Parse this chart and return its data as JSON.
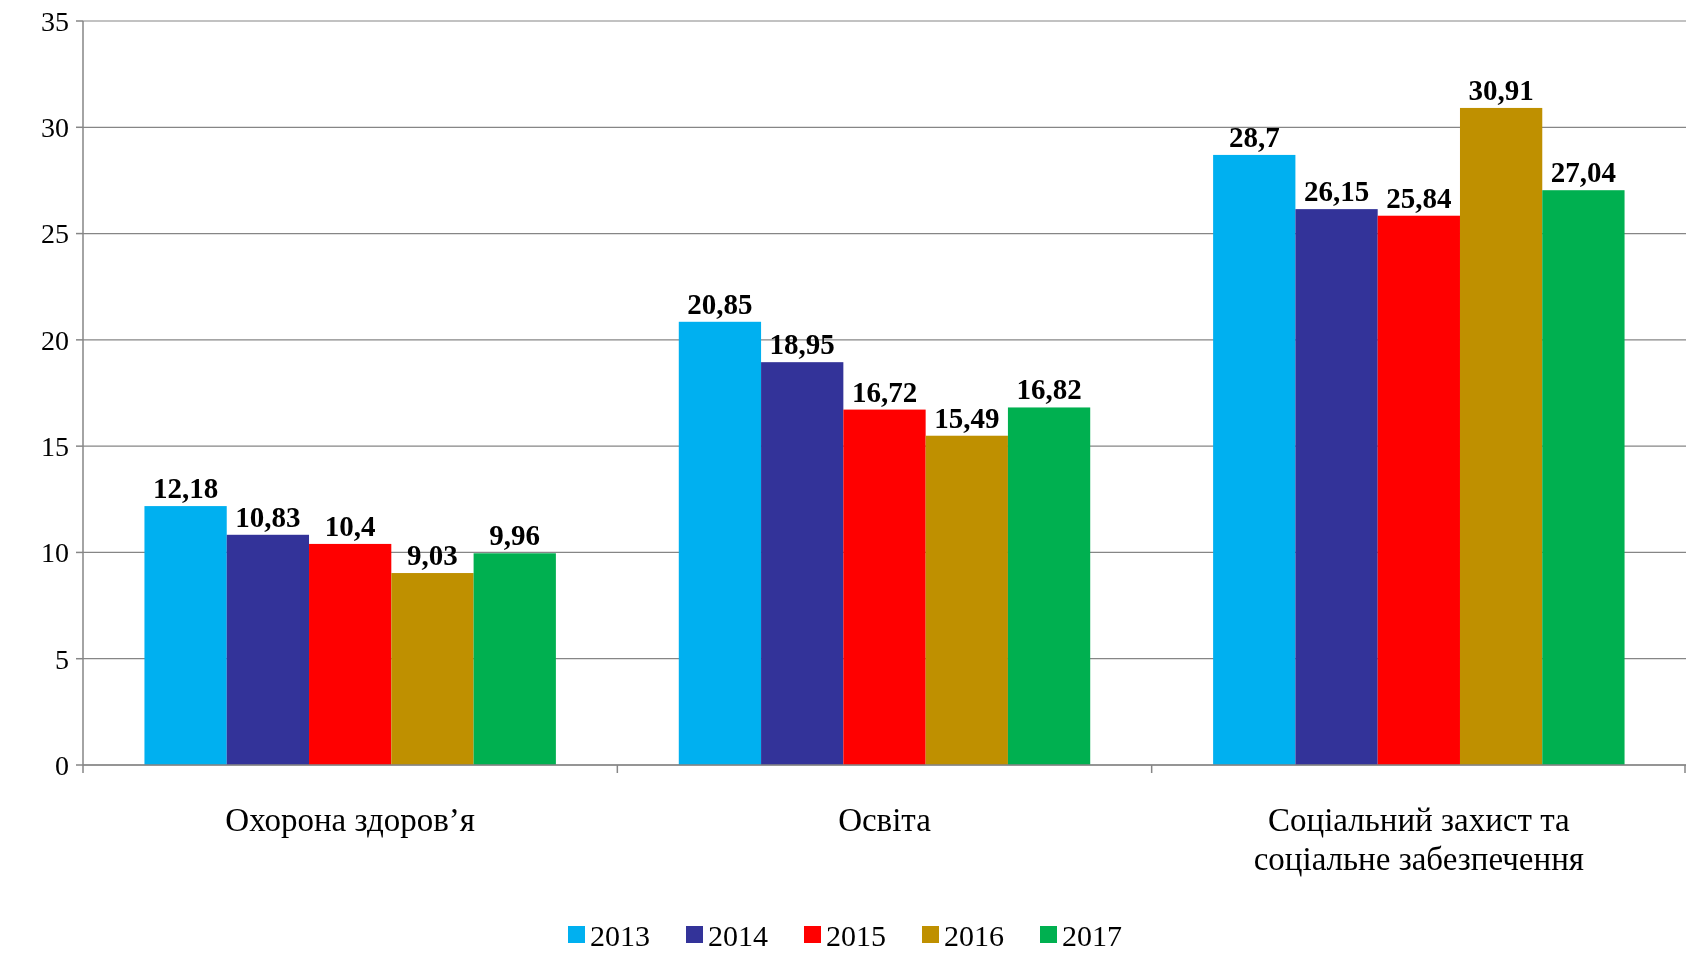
{
  "chart_data": {
    "type": "bar",
    "categories": [
      "Охорона здоров’я",
      "Освіта",
      "Соціальний захист та соціальне забезпечення"
    ],
    "series": [
      {
        "name": "2013",
        "color": "#00b0f0",
        "values": [
          12.18,
          20.85,
          28.7
        ],
        "value_labels": [
          "12,18",
          "20,85",
          "28,7"
        ]
      },
      {
        "name": "2014",
        "color": "#333399",
        "values": [
          10.83,
          18.95,
          26.15
        ],
        "value_labels": [
          "10,83",
          "18,95",
          "26,15"
        ]
      },
      {
        "name": "2015",
        "color": "#ff0000",
        "values": [
          10.4,
          16.72,
          25.84
        ],
        "value_labels": [
          "10,4",
          "16,72",
          "25,84"
        ]
      },
      {
        "name": "2016",
        "color": "#bf9000",
        "values": [
          9.03,
          15.49,
          30.91
        ],
        "value_labels": [
          "9,03",
          "15,49",
          "30,91"
        ]
      },
      {
        "name": "2017",
        "color": "#00b050",
        "values": [
          9.96,
          16.82,
          27.04
        ],
        "value_labels": [
          "9,96",
          "16,82",
          "27,04"
        ]
      }
    ],
    "ylim": [
      0,
      35
    ],
    "yticks": [
      0,
      5,
      10,
      15,
      20,
      25,
      30,
      35
    ],
    "grid": "y",
    "legend": "bottom"
  }
}
